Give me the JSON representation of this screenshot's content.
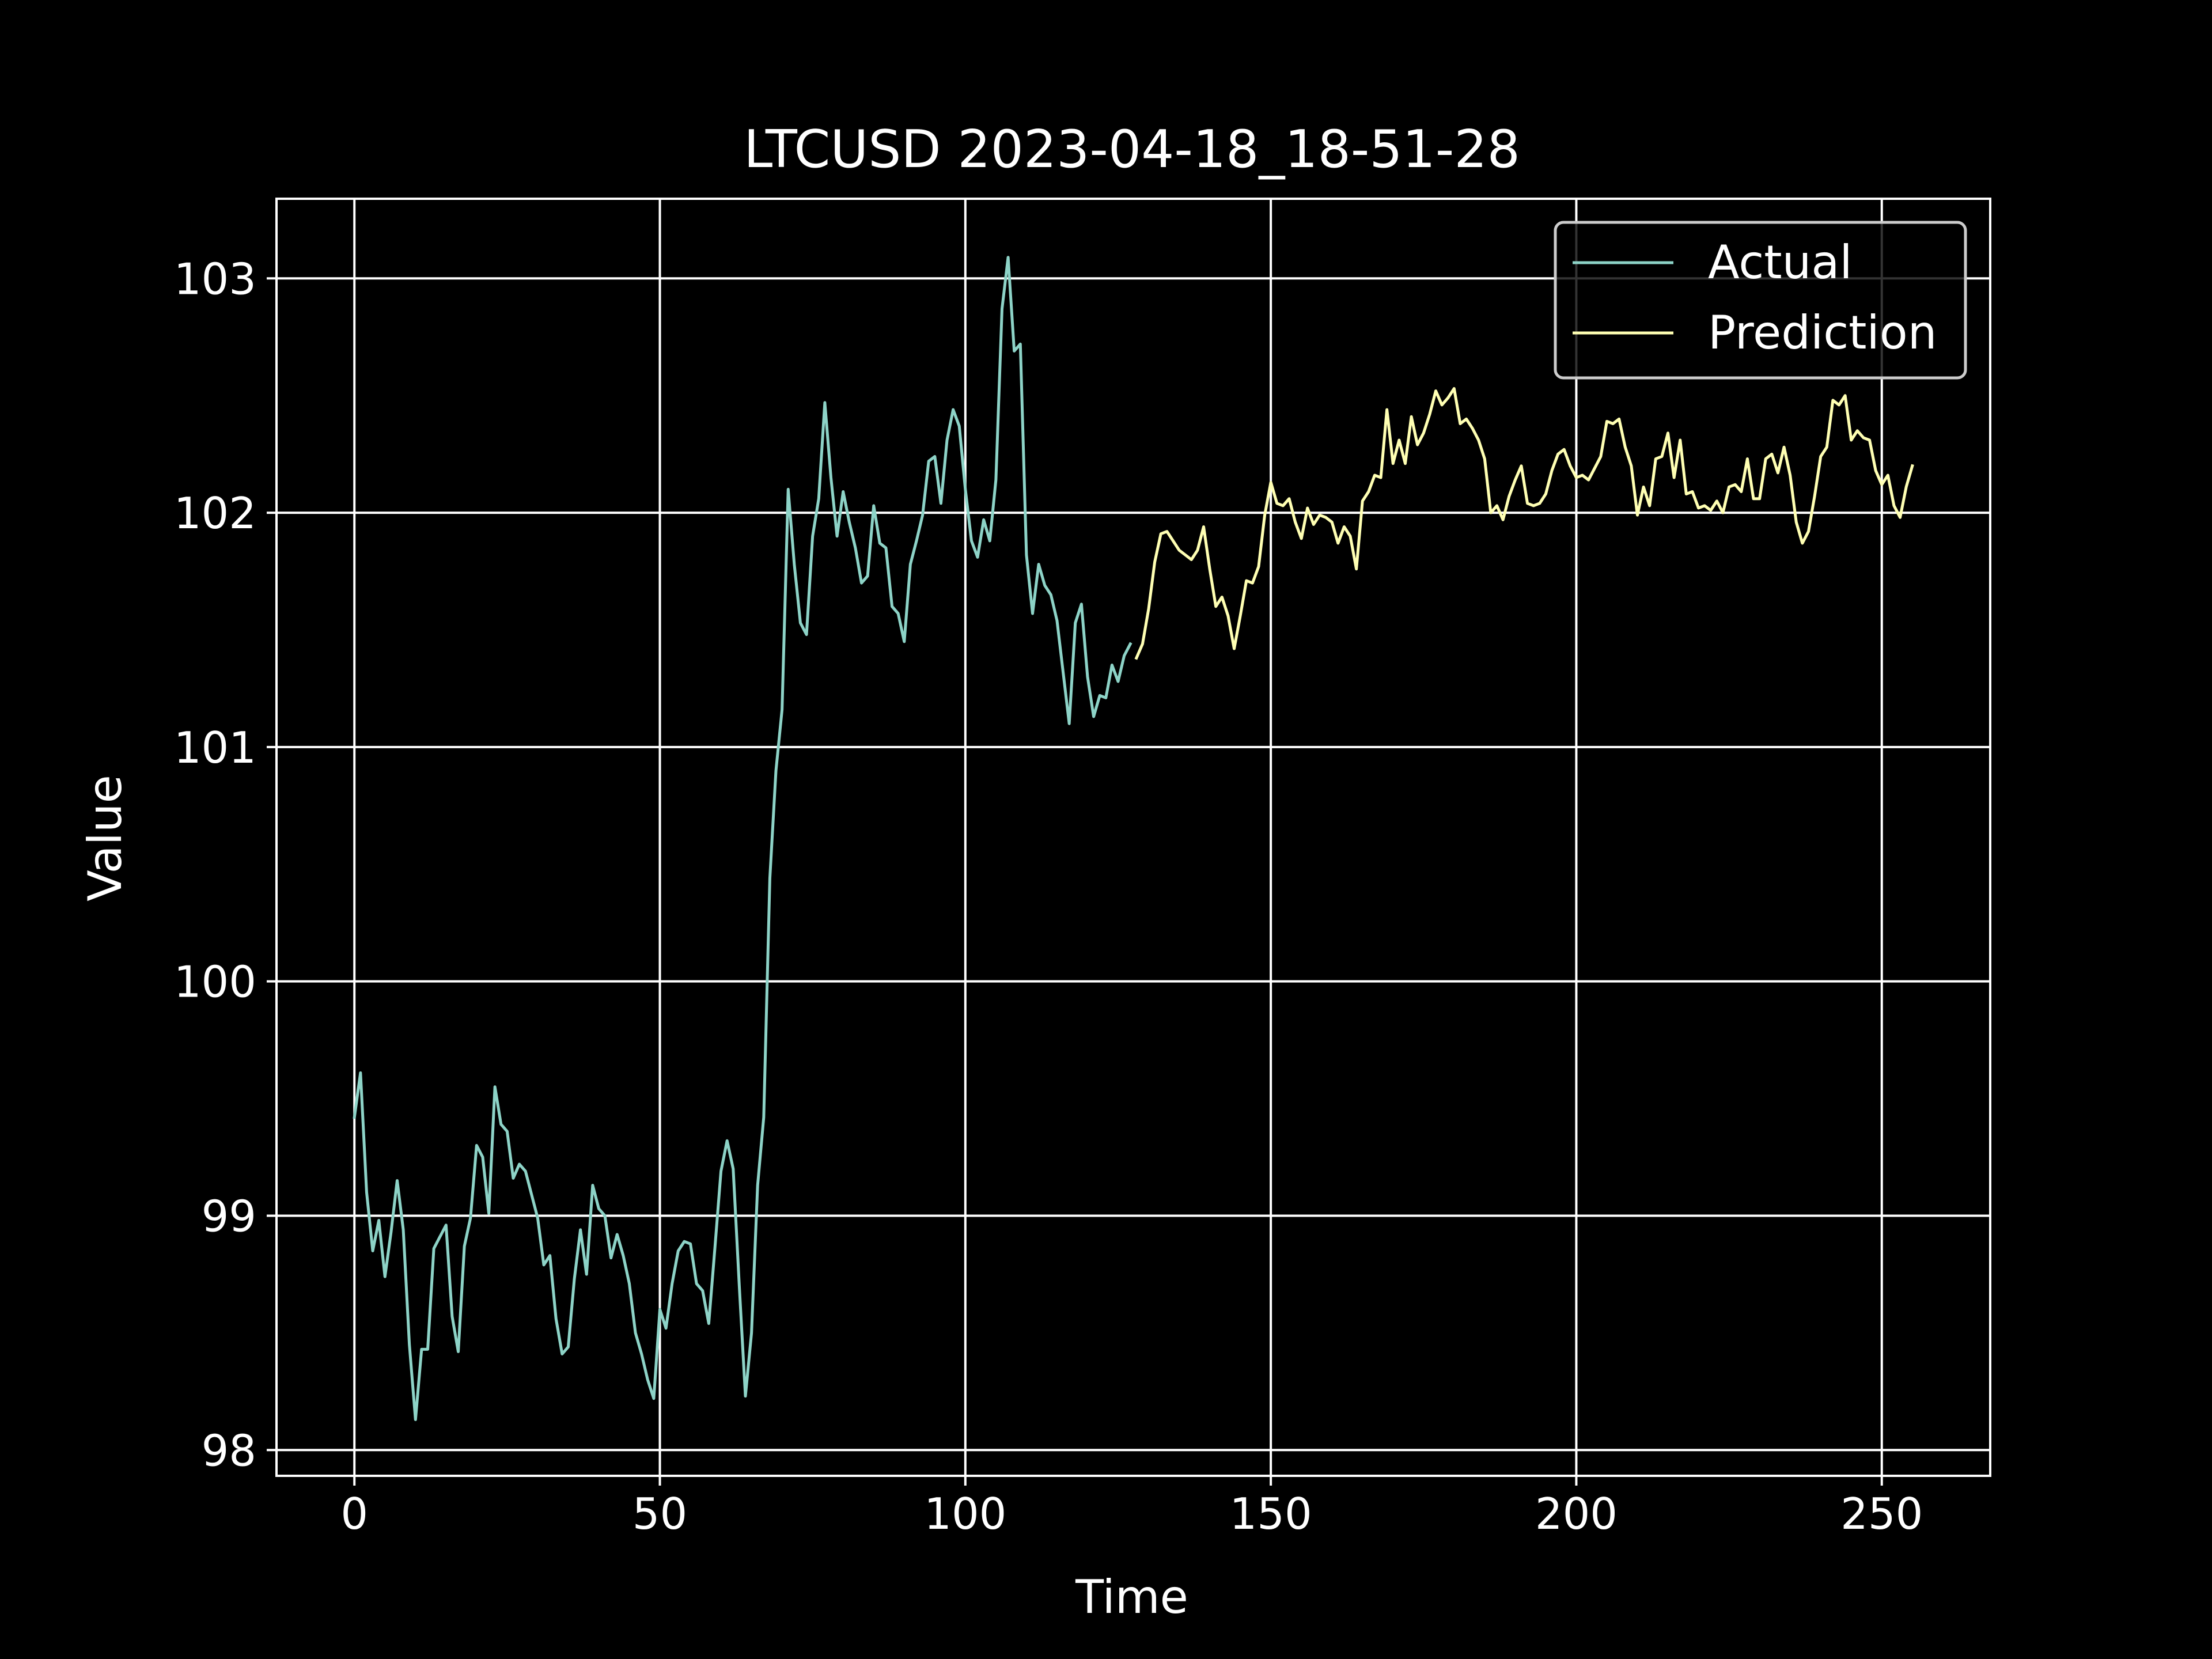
{
  "chart_data": {
    "type": "line",
    "title": "LTCUSD 2023-04-18_18-51-28",
    "xlabel": "Time",
    "ylabel": "Value",
    "xlim": [
      -12.75,
      267.75
    ],
    "ylim": [
      97.89,
      103.34
    ],
    "xticks": [
      0,
      50,
      100,
      150,
      200,
      250
    ],
    "yticks": [
      98,
      99,
      100,
      101,
      102,
      103
    ],
    "grid": true,
    "legend_position": "top-right",
    "series": [
      {
        "name": "Actual",
        "color": "#8dd3c7",
        "x_start": 0,
        "values": [
          99.42,
          99.61,
          99.1,
          98.85,
          98.98,
          98.74,
          98.93,
          99.15,
          98.94,
          98.45,
          98.13,
          98.43,
          98.43,
          98.86,
          98.91,
          98.96,
          98.57,
          98.42,
          98.87,
          98.99,
          99.3,
          99.25,
          99.01,
          99.55,
          99.39,
          99.36,
          99.16,
          99.22,
          99.19,
          99.09,
          98.99,
          98.79,
          98.83,
          98.56,
          98.41,
          98.44,
          98.73,
          98.94,
          98.75,
          99.13,
          99.03,
          99.0,
          98.82,
          98.92,
          98.83,
          98.71,
          98.5,
          98.41,
          98.3,
          98.22,
          98.6,
          98.52,
          98.71,
          98.85,
          98.89,
          98.88,
          98.71,
          98.68,
          98.54,
          98.86,
          99.19,
          99.32,
          99.2,
          98.7,
          98.23,
          98.5,
          99.13,
          99.42,
          100.44,
          100.9,
          101.16,
          102.1,
          101.78,
          101.53,
          101.48,
          101.9,
          102.06,
          102.47,
          102.15,
          101.9,
          102.09,
          101.96,
          101.85,
          101.7,
          101.73,
          102.03,
          101.87,
          101.85,
          101.6,
          101.57,
          101.45,
          101.78,
          101.88,
          101.99,
          102.22,
          102.24,
          102.04,
          102.31,
          102.44,
          102.37,
          102.1,
          101.88,
          101.81,
          101.97,
          101.88,
          102.14,
          102.87,
          103.09,
          102.69,
          102.72,
          101.82,
          101.57,
          101.78,
          101.69,
          101.65,
          101.54,
          101.32,
          101.1,
          101.53,
          101.61,
          101.3,
          101.13,
          101.22,
          101.21,
          101.35,
          101.28,
          101.39,
          101.44
        ]
      },
      {
        "name": "Prediction",
        "color": "#ffffb3",
        "x_start": 128,
        "values": [
          101.38,
          101.44,
          101.59,
          101.79,
          101.91,
          101.92,
          101.88,
          101.84,
          101.82,
          101.8,
          101.84,
          101.94,
          101.76,
          101.6,
          101.64,
          101.56,
          101.42,
          101.56,
          101.71,
          101.7,
          101.77,
          101.99,
          102.13,
          102.04,
          102.03,
          102.06,
          101.96,
          101.89,
          102.02,
          101.95,
          101.99,
          101.98,
          101.96,
          101.87,
          101.94,
          101.9,
          101.76,
          102.05,
          102.09,
          102.16,
          102.15,
          102.44,
          102.21,
          102.31,
          102.21,
          102.41,
          102.29,
          102.34,
          102.42,
          102.52,
          102.46,
          102.49,
          102.53,
          102.38,
          102.4,
          102.36,
          102.31,
          102.23,
          102.0,
          102.03,
          101.97,
          102.07,
          102.14,
          102.2,
          102.04,
          102.03,
          102.04,
          102.08,
          102.18,
          102.25,
          102.27,
          102.2,
          102.15,
          102.16,
          102.14,
          102.19,
          102.24,
          102.39,
          102.38,
          102.4,
          102.28,
          102.2,
          101.99,
          102.11,
          102.03,
          102.23,
          102.24,
          102.34,
          102.15,
          102.31,
          102.08,
          102.09,
          102.02,
          102.03,
          102.01,
          102.05,
          102.0,
          102.11,
          102.12,
          102.09,
          102.23,
          102.06,
          102.06,
          102.23,
          102.25,
          102.17,
          102.28,
          102.16,
          101.96,
          101.87,
          101.92,
          102.07,
          102.24,
          102.28,
          102.48,
          102.46,
          102.5,
          102.31,
          102.35,
          102.32,
          102.31,
          102.18,
          102.12,
          102.16,
          102.03,
          101.98,
          102.11,
          102.2
        ]
      }
    ]
  }
}
